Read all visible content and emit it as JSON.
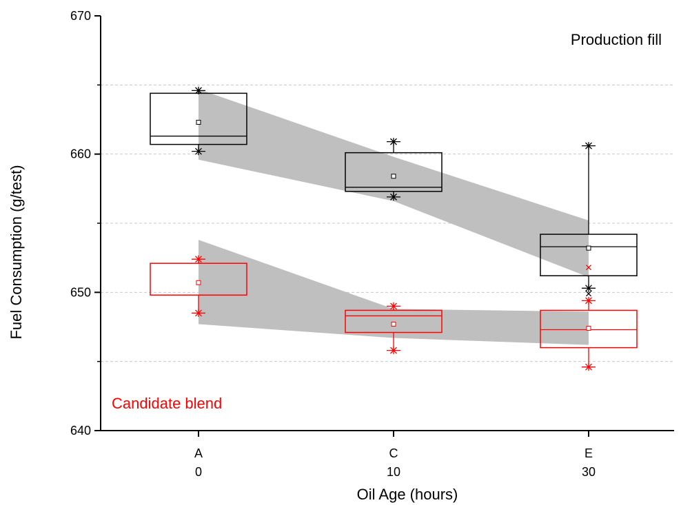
{
  "chart_data": {
    "type": "box",
    "xlabel": "Oil Age (hours)",
    "ylabel": "Fuel Consumption (g/test)",
    "ylim": [
      640,
      670
    ],
    "yticks": [
      640,
      650,
      660,
      670
    ],
    "grid": {
      "y_dashed_at": [
        645,
        650,
        655,
        660,
        665
      ]
    },
    "categories": [
      {
        "letter": "A",
        "hours": "0"
      },
      {
        "letter": "C",
        "hours": "10"
      },
      {
        "letter": "E",
        "hours": "30"
      }
    ],
    "annotations": {
      "production": "Production fill",
      "candidate": "Candidate blend"
    },
    "series": [
      {
        "color": "#000000",
        "annotation_key": "production",
        "boxes": [
          {
            "q1": 660.7,
            "median": 661.3,
            "q3": 664.4,
            "mean": 662.3,
            "whisker_low": 660.2,
            "whisker_high": 664.6,
            "outliers": []
          },
          {
            "q1": 657.3,
            "median": 657.6,
            "q3": 660.1,
            "mean": 658.4,
            "whisker_low": 656.9,
            "whisker_high": 660.9,
            "outliers": []
          },
          {
            "q1": 651.2,
            "median": 653.3,
            "q3": 654.2,
            "mean": 653.2,
            "whisker_low": 650.3,
            "whisker_high": 660.6,
            "outliers": [
              649.9
            ]
          }
        ],
        "band": {
          "upper": [
            664.7,
            659.8,
            655.2
          ],
          "lower": [
            659.6,
            656.6,
            651.1
          ]
        }
      },
      {
        "color": "#ff0000",
        "annotation_key": "candidate",
        "boxes": [
          {
            "q1": 649.8,
            "median": 649.8,
            "q3": 652.1,
            "mean": 650.7,
            "whisker_low": 648.5,
            "whisker_high": 652.4,
            "outliers": []
          },
          {
            "q1": 647.1,
            "median": 648.3,
            "q3": 648.7,
            "mean": 647.7,
            "whisker_low": 645.8,
            "whisker_high": 649.0,
            "outliers": []
          },
          {
            "q1": 646.0,
            "median": 647.3,
            "q3": 648.7,
            "mean": 647.4,
            "whisker_low": 644.6,
            "whisker_high": 649.4,
            "outliers": [
              651.8
            ]
          }
        ],
        "band": {
          "upper": [
            653.8,
            648.8,
            648.6
          ],
          "lower": [
            647.7,
            646.7,
            646.2
          ]
        }
      }
    ]
  }
}
